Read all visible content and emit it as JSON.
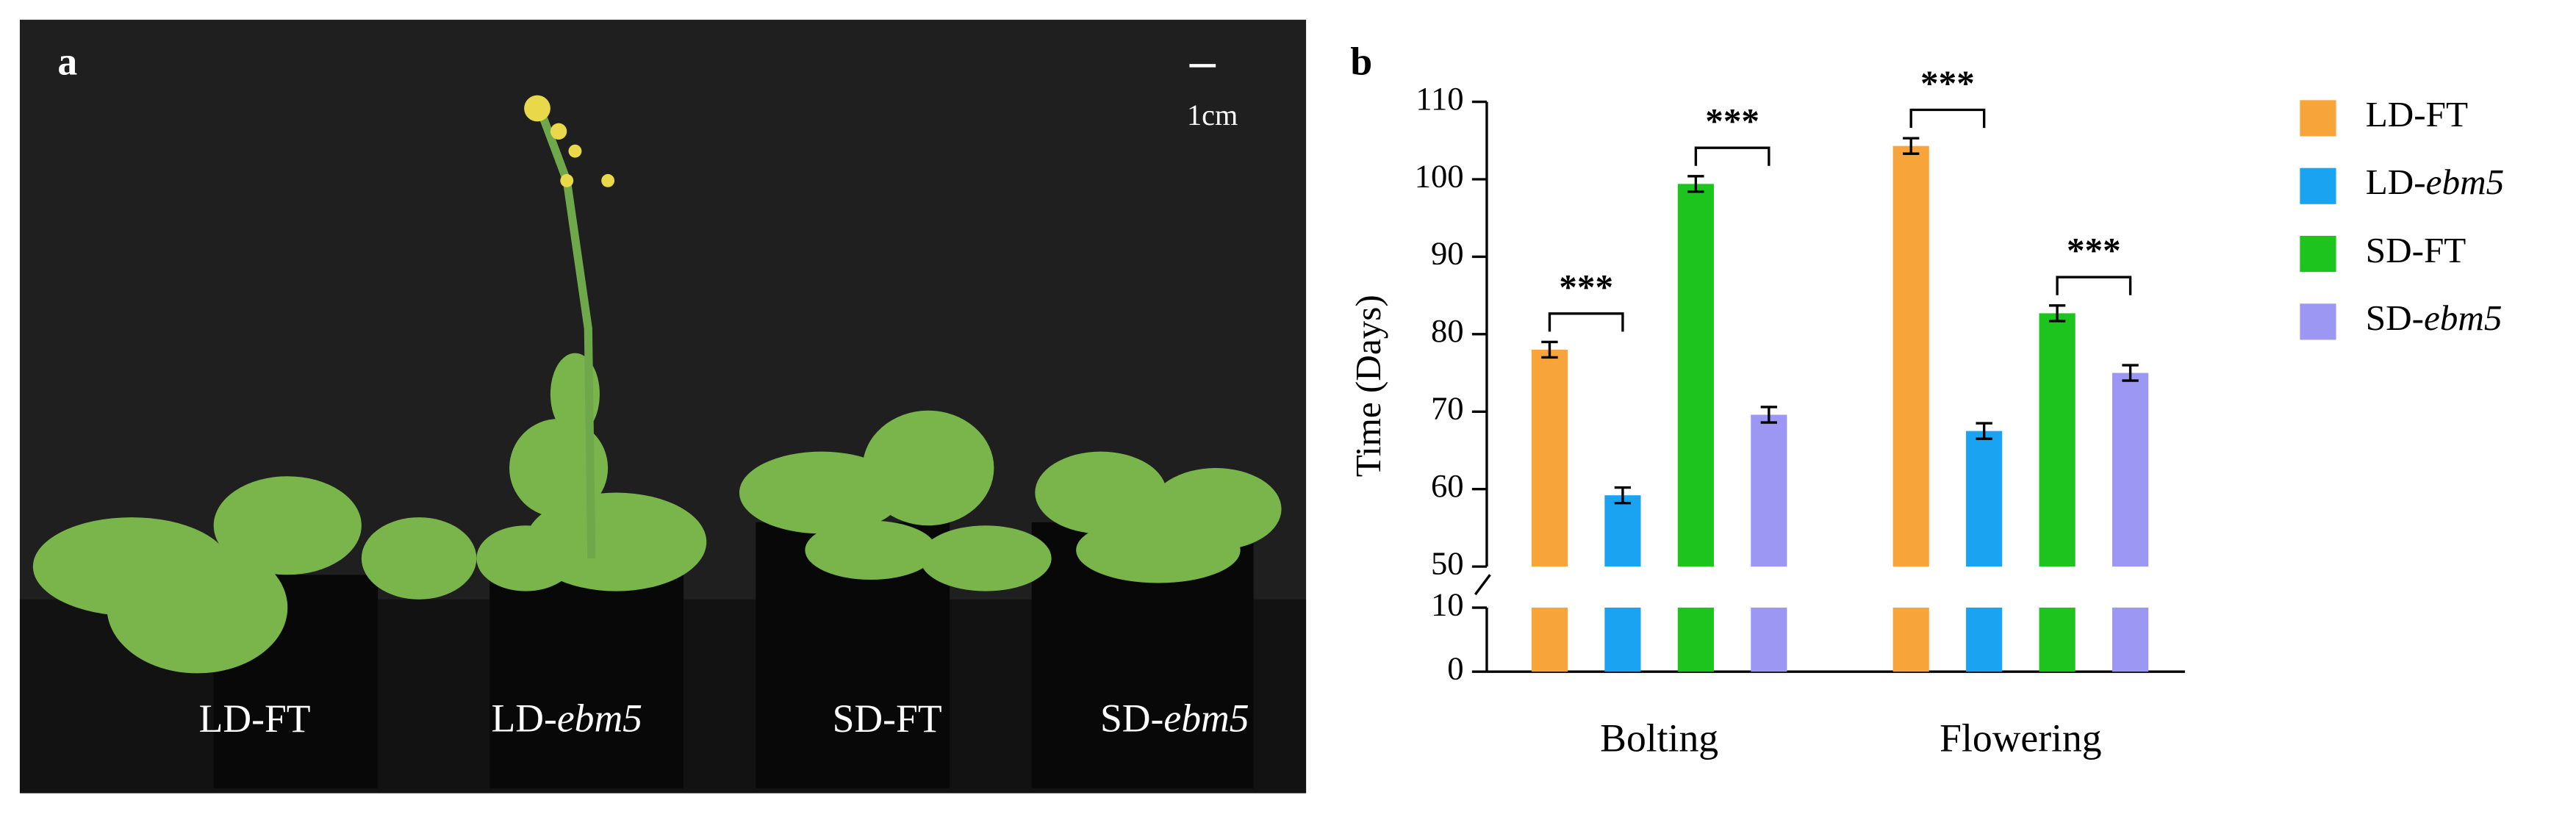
{
  "panel_a": {
    "label": "a",
    "scale_bar": "1cm",
    "plants": [
      "LD-FT",
      "LD-ebm5",
      "SD-FT",
      "SD-ebm5"
    ]
  },
  "chart_data": {
    "type": "bar",
    "panel_label": "b",
    "ylabel": "Time (Days)",
    "categories": [
      "Bolting",
      "Flowering"
    ],
    "series": [
      {
        "name": "LD-FT",
        "color": "#f7a43a",
        "values": [
          78,
          104.3
        ],
        "errors": [
          1,
          1
        ]
      },
      {
        "name": "LD-ebm5",
        "color": "#1aa3f0",
        "values": [
          59.2,
          67.5
        ],
        "errors": [
          1,
          1
        ]
      },
      {
        "name": "SD-FT",
        "color": "#1ec41e",
        "values": [
          99.4,
          82.7
        ],
        "errors": [
          1,
          1
        ]
      },
      {
        "name": "SD-ebm5",
        "color": "#9b97f2",
        "values": [
          69.6,
          75
        ],
        "errors": [
          1,
          1
        ]
      }
    ],
    "ylim": [
      0,
      110
    ],
    "ybreak": [
      10,
      50
    ],
    "yticks": [
      0,
      10,
      50,
      60,
      70,
      80,
      90,
      100,
      110
    ],
    "annotations": [
      {
        "text": "***",
        "category": 0,
        "series": [
          0,
          1
        ]
      },
      {
        "text": "***",
        "category": 0,
        "series": [
          2,
          3
        ]
      },
      {
        "text": "***",
        "category": 1,
        "series": [
          0,
          1
        ]
      },
      {
        "text": "***",
        "category": 1,
        "series": [
          2,
          3
        ]
      }
    ],
    "legend": "right"
  }
}
